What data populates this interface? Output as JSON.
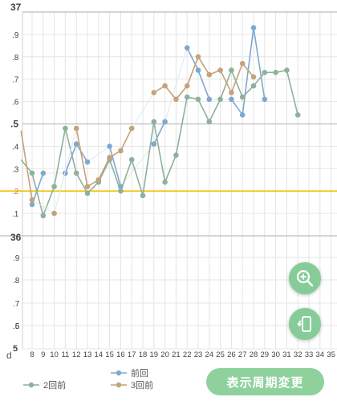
{
  "chart_data": {
    "type": "line",
    "x": [
      8,
      9,
      10,
      11,
      12,
      13,
      14,
      15,
      16,
      17,
      18,
      19,
      20,
      21,
      22,
      23,
      24,
      25,
      26,
      27,
      28,
      29,
      30,
      31,
      32
    ],
    "xtick_labels": [
      "8",
      "9",
      "10",
      "11",
      "12",
      "13",
      "14",
      "15",
      "16",
      "17",
      "18",
      "19",
      "20",
      "21",
      "22",
      "23",
      "24",
      "25",
      "26",
      "27",
      "28",
      "29",
      "30",
      "31",
      "32",
      "33",
      "34",
      "35"
    ],
    "x_axis_prefix": "d",
    "upper_y_labels": [
      "37",
      ".9",
      ".8",
      ".7",
      ".6",
      ".5",
      ".4",
      ".3",
      ".2",
      ".1"
    ],
    "lower_y_labels": [
      "36",
      ".9",
      ".8",
      ".7",
      ".6",
      "5",
      ".5"
    ],
    "ylim": [
      36.1,
      37.0
    ],
    "reference_line": 36.2,
    "series": [
      {
        "name": "前回",
        "color": "#7fa8cf",
        "points": [
          [
            8,
            36.14
          ],
          [
            9,
            36.28
          ],
          [
            11,
            36.28
          ],
          [
            12,
            36.41
          ],
          [
            13,
            36.33
          ],
          [
            15,
            36.4
          ],
          [
            16,
            36.22
          ],
          [
            19,
            36.41
          ],
          [
            20,
            36.51
          ],
          [
            22,
            36.84
          ],
          [
            23,
            36.74
          ],
          [
            24,
            36.61
          ],
          [
            26,
            36.61
          ],
          [
            27,
            36.54
          ],
          [
            28,
            36.93
          ],
          [
            29,
            36.61
          ]
        ]
      },
      {
        "name": "2回前",
        "color": "#8fb09b",
        "points": [
          [
            7,
            36.34
          ],
          [
            8,
            36.28
          ],
          [
            9,
            36.09
          ],
          [
            10,
            36.22
          ],
          [
            11,
            36.48
          ],
          [
            12,
            36.28
          ],
          [
            13,
            36.19
          ],
          [
            14,
            36.24
          ],
          [
            15,
            36.34
          ],
          [
            16,
            36.2
          ],
          [
            17,
            36.34
          ],
          [
            18,
            36.18
          ],
          [
            19,
            36.51
          ],
          [
            20,
            36.24
          ],
          [
            21,
            36.36
          ],
          [
            22,
            36.62
          ],
          [
            23,
            36.61
          ],
          [
            24,
            36.51
          ],
          [
            25,
            36.61
          ],
          [
            26,
            36.74
          ],
          [
            27,
            36.62
          ],
          [
            28,
            36.67
          ],
          [
            29,
            36.73
          ],
          [
            30,
            36.73
          ],
          [
            31,
            36.74
          ],
          [
            32,
            36.54
          ]
        ]
      },
      {
        "name": "3回前",
        "color": "#c4a27b",
        "points": [
          [
            7,
            36.47
          ],
          [
            8,
            36.16
          ],
          [
            10,
            36.1
          ],
          [
            12,
            36.48
          ],
          [
            13,
            36.22
          ],
          [
            14,
            36.25
          ],
          [
            15,
            36.35
          ],
          [
            16,
            36.38
          ],
          [
            17,
            36.48
          ],
          [
            19,
            36.64
          ],
          [
            20,
            36.67
          ],
          [
            21,
            36.61
          ],
          [
            22,
            36.67
          ],
          [
            23,
            36.8
          ],
          [
            24,
            36.72
          ],
          [
            25,
            36.74
          ],
          [
            26,
            36.64
          ],
          [
            27,
            36.77
          ],
          [
            28,
            36.71
          ]
        ]
      }
    ]
  },
  "legend": {
    "prev": "前回",
    "prev2": "2回前",
    "prev3": "3回前"
  },
  "colors": {
    "prev": "#7fa8cf",
    "prev2": "#8fb09b",
    "prev3": "#c4a27b",
    "reference": "#f2c200",
    "accent": "#8fd19d"
  },
  "buttons": {
    "change_period": "表示周期変更",
    "zoom_icon": "zoom-in-icon",
    "rotate_icon": "rotate-device-icon"
  }
}
